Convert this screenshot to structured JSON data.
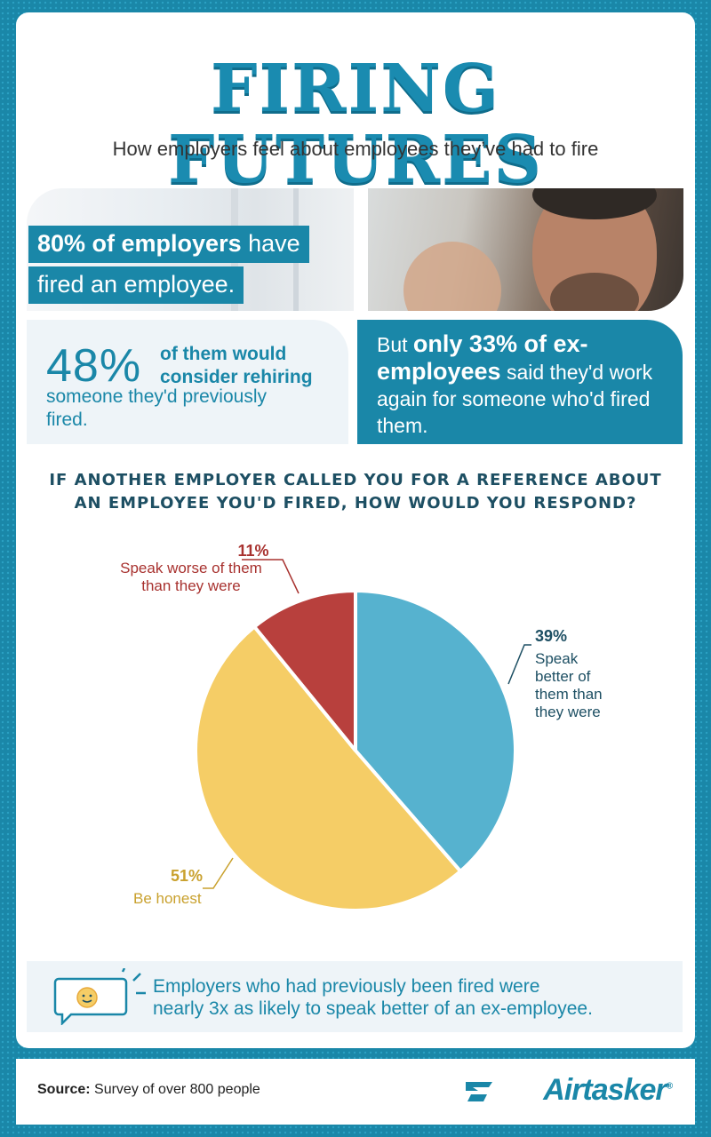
{
  "header": {
    "title": "FIRING FUTURES",
    "subtitle": "How employers feel about employees they’ve had to fire"
  },
  "stat_fired": {
    "line1_bold": "80% of employers",
    "line1_rest": " have",
    "line2": "fired an employee."
  },
  "stat_rehire": {
    "big": "48%",
    "side": "of them would consider rehiring",
    "rest": "someone they'd previously fired."
  },
  "stat_ex": {
    "lead": "But ",
    "bold": "only 33% of ex-employees",
    "rest": " said they'd work again for someone who'd fired them."
  },
  "question": {
    "line1": "IF ANOTHER EMPLOYER CALLED YOU FOR A REFERENCE ABOUT",
    "line2": "AN EMPLOYEE YOU'D FIRED, HOW WOULD YOU RESPOND?"
  },
  "chart_data": {
    "type": "pie",
    "slices": [
      {
        "label": "Speak better of them than they were",
        "value": 39,
        "pct_text": "39%",
        "color": "#56b2cf"
      },
      {
        "label": "Be honest",
        "value": 51,
        "pct_text": "51%",
        "color": "#f5cd66"
      },
      {
        "label": "Speak worse of them than they were",
        "value": 11,
        "pct_text": "11%",
        "color": "#b8403d"
      }
    ],
    "label_lines": {
      "better": [
        "Speak",
        "better of",
        "them than",
        "they were"
      ],
      "honest": [
        "Be honest"
      ],
      "worse": [
        "Speak worse of them",
        "than they were"
      ]
    }
  },
  "fact": {
    "line1": "Employers who had previously been fired were",
    "line2": "nearly 3x as likely to speak better of an ex-employee."
  },
  "footer": {
    "source_label": "Source:",
    "source_text": " Survey of over 800 people",
    "logo": "Airtasker",
    "logo_reg": "®"
  },
  "colors": {
    "brand": "#1a87a8",
    "dark_heading": "#1d4f63",
    "better_text": "#1d4f63",
    "honest_text": "#c9a12e",
    "worse_text": "#a8322f"
  },
  "icons": [
    "smiley-speech-bubble-icon",
    "airtasker-logo-icon"
  ]
}
